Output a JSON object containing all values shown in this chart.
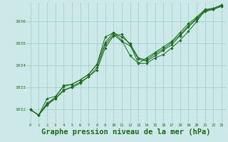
{
  "background_color": "#cce8e8",
  "grid_color": "#99cccc",
  "line_color": "#1a6b1a",
  "marker_color": "#1a6b1a",
  "xlabel": "Graphe pression niveau de la mer (hPa)",
  "xlabel_fontsize": 7.5,
  "xlabel_color": "#1a6b1a",
  "ylabel_ticks": [
    1032,
    1033,
    1034,
    1035,
    1036
  ],
  "xlim": [
    -0.5,
    23.5
  ],
  "ylim": [
    1031.4,
    1036.85
  ],
  "xticks": [
    0,
    1,
    2,
    3,
    4,
    5,
    6,
    7,
    8,
    9,
    10,
    11,
    12,
    13,
    14,
    15,
    16,
    17,
    18,
    19,
    20,
    21,
    22,
    23
  ],
  "series1": [
    1032.0,
    1031.75,
    1032.2,
    1032.5,
    1032.9,
    1033.0,
    1033.2,
    1033.5,
    1033.8,
    1034.8,
    1035.35,
    1035.42,
    1034.95,
    1034.1,
    1034.1,
    1034.35,
    1034.5,
    1034.8,
    1035.15,
    1035.55,
    1036.0,
    1036.5,
    1036.55,
    1036.7
  ],
  "series2": [
    1032.0,
    1031.75,
    1032.5,
    1032.6,
    1033.05,
    1033.15,
    1033.35,
    1033.6,
    1034.05,
    1035.3,
    1035.5,
    1035.15,
    1034.45,
    1034.1,
    1034.35,
    1034.6,
    1034.85,
    1035.1,
    1035.5,
    1035.9,
    1036.2,
    1036.55,
    1036.6,
    1036.75
  ],
  "series3": [
    1032.0,
    1031.75,
    1032.25,
    1032.5,
    1032.85,
    1033.05,
    1033.25,
    1033.5,
    1033.9,
    1034.95,
    1035.4,
    1035.1,
    1034.9,
    1034.3,
    1034.2,
    1034.45,
    1034.7,
    1034.95,
    1035.35,
    1035.75,
    1036.1,
    1036.45,
    1036.55,
    1036.7
  ],
  "series4": [
    1032.0,
    1031.75,
    1032.3,
    1032.55,
    1033.1,
    1033.15,
    1033.35,
    1033.6,
    1034.05,
    1035.05,
    1035.5,
    1035.3,
    1035.0,
    1034.35,
    1034.25,
    1034.55,
    1034.75,
    1035.05,
    1035.4,
    1035.8,
    1036.15,
    1036.5,
    1036.6,
    1036.75
  ]
}
